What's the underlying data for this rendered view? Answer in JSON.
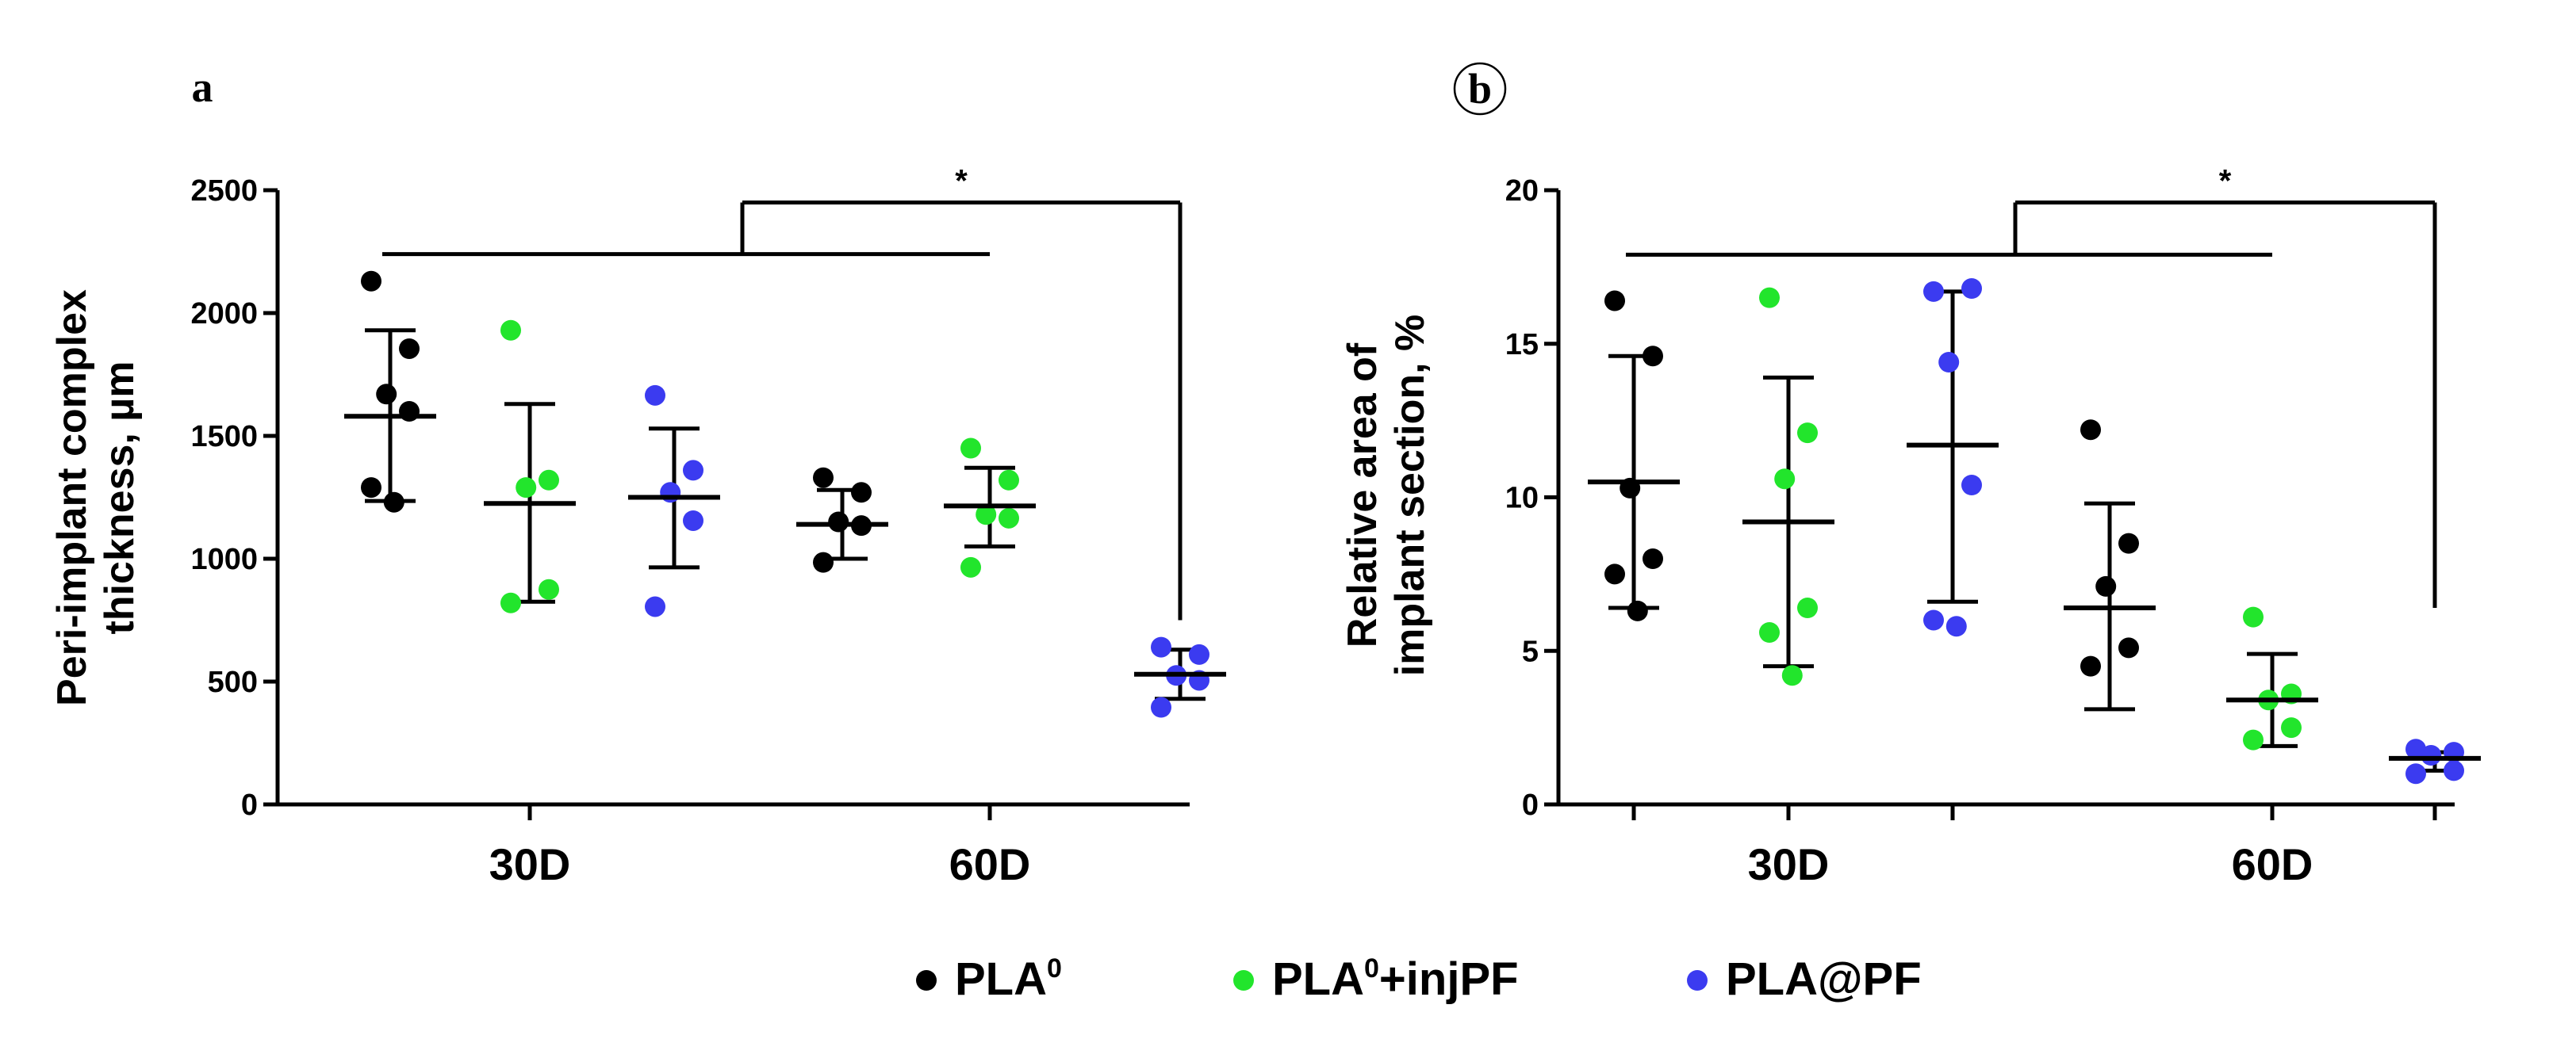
{
  "chart_data": [
    {
      "panel": "a",
      "type": "scatter",
      "ylabel_line1": "Peri-implant complex",
      "ylabel_line2": "thickness, µm",
      "ylim": [
        0,
        2500
      ],
      "yticks": [
        0,
        500,
        1000,
        1500,
        2000,
        2500
      ],
      "categories": [
        "30D",
        "60D"
      ],
      "series": [
        {
          "name": "PLA⁰ 30D",
          "group": "PLA0",
          "category": "30D",
          "mean": 1580,
          "sd_upper": 1930,
          "sd_lower": 1235,
          "points": [
            2130,
            1855,
            1670,
            1600,
            1290,
            1230
          ]
        },
        {
          "name": "PLA⁰+injPF 30D",
          "group": "PLA0+injPF",
          "category": "30D",
          "mean": 1225,
          "sd_upper": 1630,
          "sd_lower": 825,
          "points": [
            1930,
            1320,
            1290,
            875,
            820
          ]
        },
        {
          "name": "PLA@PF 30D",
          "group": "PLA@PF",
          "category": "30D",
          "mean": 1250,
          "sd_upper": 1530,
          "sd_lower": 965,
          "points": [
            1665,
            1360,
            1270,
            1155,
            805
          ]
        },
        {
          "name": "PLA⁰ 60D",
          "group": "PLA0",
          "category": "60D",
          "mean": 1140,
          "sd_upper": 1280,
          "sd_lower": 1000,
          "points": [
            1330,
            1270,
            1150,
            1135,
            985
          ]
        },
        {
          "name": "PLA⁰+injPF 60D",
          "group": "PLA0+injPF",
          "category": "60D",
          "mean": 1215,
          "sd_upper": 1370,
          "sd_lower": 1050,
          "points": [
            1450,
            1320,
            1180,
            1165,
            965
          ]
        },
        {
          "name": "PLA@PF 60D",
          "group": "PLA@PF",
          "category": "60D",
          "mean": 530,
          "sd_upper": 630,
          "sd_lower": 430,
          "points": [
            640,
            610,
            525,
            505,
            395
          ]
        }
      ],
      "significance": {
        "label": "*",
        "bar_y": 2450,
        "left_bracket_y": 2240,
        "right_end_y": 750
      }
    },
    {
      "panel": "b",
      "type": "scatter",
      "ylabel_line1": "Relative area of",
      "ylabel_line2": "implant section, %",
      "ylim": [
        0,
        20
      ],
      "yticks": [
        0,
        5,
        10,
        15,
        20
      ],
      "categories": [
        "30D",
        "60D"
      ],
      "series": [
        {
          "name": "PLA⁰ 30D",
          "group": "PLA0",
          "category": "30D",
          "mean": 10.5,
          "sd_upper": 14.6,
          "sd_lower": 6.4,
          "points": [
            16.4,
            14.6,
            10.3,
            8.0,
            7.5,
            6.3
          ]
        },
        {
          "name": "PLA⁰+injPF 30D",
          "group": "PLA0+injPF",
          "category": "30D",
          "mean": 9.2,
          "sd_upper": 13.9,
          "sd_lower": 4.5,
          "points": [
            16.5,
            12.1,
            10.6,
            6.4,
            5.6,
            4.2
          ]
        },
        {
          "name": "PLA@PF 30D",
          "group": "PLA@PF",
          "category": "30D",
          "mean": 11.7,
          "sd_upper": 16.7,
          "sd_lower": 6.6,
          "points": [
            16.7,
            16.8,
            14.4,
            10.4,
            6.0,
            5.8
          ]
        },
        {
          "name": "PLA⁰ 60D",
          "group": "PLA0",
          "category": "60D",
          "mean": 6.4,
          "sd_upper": 9.8,
          "sd_lower": 3.1,
          "points": [
            12.2,
            8.5,
            7.1,
            5.1,
            4.5
          ]
        },
        {
          "name": "PLA⁰+injPF 60D",
          "group": "PLA0+injPF",
          "category": "60D",
          "mean": 3.4,
          "sd_upper": 4.9,
          "sd_lower": 1.9,
          "points": [
            6.1,
            3.6,
            3.4,
            2.5,
            2.1
          ]
        },
        {
          "name": "PLA@PF 60D",
          "group": "PLA@PF",
          "category": "60D",
          "mean": 1.5,
          "sd_upper": 1.7,
          "sd_lower": 1.1,
          "points": [
            1.8,
            1.7,
            1.6,
            1.1,
            1.0
          ]
        }
      ],
      "significance": {
        "label": "*",
        "bar_y": 19.6,
        "left_bracket_y": 17.9,
        "right_end_y": 6.4
      }
    }
  ],
  "legend": [
    {
      "group": "PLA0",
      "base": "PLA",
      "sup": "0",
      "suffix": "",
      "color": "#000000"
    },
    {
      "group": "PLA0+injPF",
      "base": "PLA",
      "sup": "0",
      "suffix": "+injPF",
      "color": "#22e52c"
    },
    {
      "group": "PLA@PF",
      "base": "PLA@PF",
      "sup": "",
      "suffix": "",
      "color": "#3b3bf0"
    }
  ],
  "colors": {
    "PLA0": "#000000",
    "PLA0+injPF": "#22e52c",
    "PLA@PF": "#3b3bf0"
  }
}
